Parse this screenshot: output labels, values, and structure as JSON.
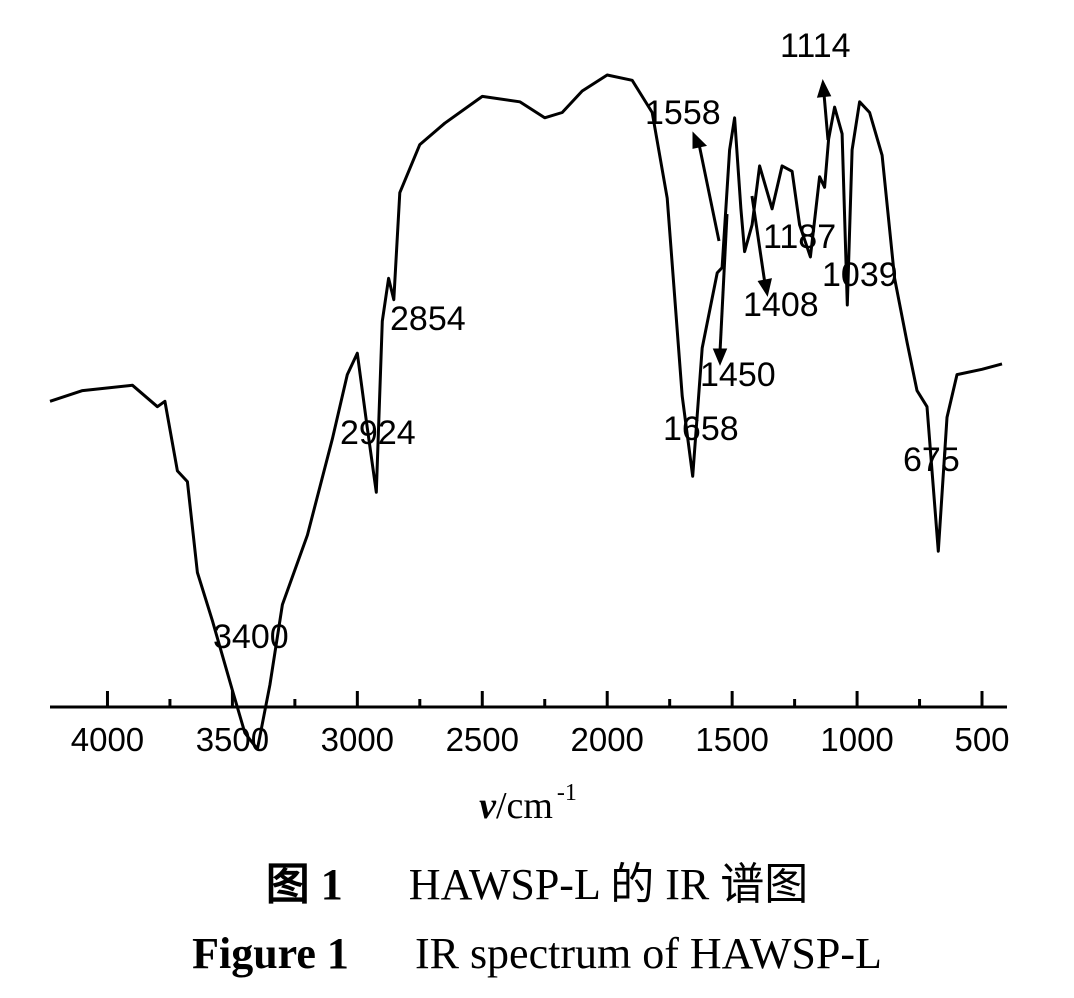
{
  "chart_data": {
    "type": "line",
    "xlabel": {
      "symbol": "ν",
      "unit": "/cm",
      "superscript": "-1"
    },
    "xlim": [
      4230,
      400
    ],
    "x_reversed": true,
    "xticks": [
      4000,
      3500,
      3000,
      2500,
      2000,
      1500,
      1000,
      500
    ],
    "tick_labels": [
      "4000",
      "3500",
      "3000",
      "2500",
      "2000",
      "1500",
      "1000",
      "500"
    ],
    "y_axis_shown": false,
    "grid": false,
    "series": [
      {
        "points": [
          [
            4230,
            0.61
          ],
          [
            4100,
            0.59
          ],
          [
            3900,
            0.58
          ],
          [
            3800,
            0.62
          ],
          [
            3770,
            0.61
          ],
          [
            3720,
            0.74
          ],
          [
            3680,
            0.76
          ],
          [
            3640,
            0.93
          ],
          [
            3580,
            1.02
          ],
          [
            3500,
            1.15
          ],
          [
            3450,
            1.23
          ],
          [
            3400,
            1.26
          ],
          [
            3350,
            1.14
          ],
          [
            3300,
            0.99
          ],
          [
            3200,
            0.86
          ],
          [
            3100,
            0.68
          ],
          [
            3040,
            0.56
          ],
          [
            3000,
            0.52
          ],
          [
            2960,
            0.66
          ],
          [
            2924,
            0.78
          ],
          [
            2900,
            0.46
          ],
          [
            2875,
            0.38
          ],
          [
            2854,
            0.42
          ],
          [
            2830,
            0.22
          ],
          [
            2750,
            0.13
          ],
          [
            2650,
            0.09
          ],
          [
            2500,
            0.04
          ],
          [
            2350,
            0.05
          ],
          [
            2250,
            0.08
          ],
          [
            2180,
            0.07
          ],
          [
            2100,
            0.03
          ],
          [
            2000,
            0.0
          ],
          [
            1900,
            0.01
          ],
          [
            1820,
            0.07
          ],
          [
            1760,
            0.23
          ],
          [
            1700,
            0.6
          ],
          [
            1658,
            0.75
          ],
          [
            1620,
            0.51
          ],
          [
            1560,
            0.37
          ],
          [
            1540,
            0.36
          ],
          [
            1510,
            0.14
          ],
          [
            1490,
            0.08
          ],
          [
            1465,
            0.25
          ],
          [
            1450,
            0.33
          ],
          [
            1420,
            0.28
          ],
          [
            1390,
            0.17
          ],
          [
            1340,
            0.25
          ],
          [
            1300,
            0.17
          ],
          [
            1260,
            0.18
          ],
          [
            1230,
            0.28
          ],
          [
            1187,
            0.34
          ],
          [
            1150,
            0.19
          ],
          [
            1130,
            0.21
          ],
          [
            1114,
            0.12
          ],
          [
            1090,
            0.06
          ],
          [
            1060,
            0.11
          ],
          [
            1039,
            0.43
          ],
          [
            1020,
            0.14
          ],
          [
            990,
            0.05
          ],
          [
            950,
            0.07
          ],
          [
            900,
            0.15
          ],
          [
            850,
            0.38
          ],
          [
            800,
            0.5
          ],
          [
            760,
            0.59
          ],
          [
            720,
            0.62
          ],
          [
            675,
            0.89
          ],
          [
            640,
            0.64
          ],
          [
            600,
            0.56
          ],
          [
            500,
            0.55
          ],
          [
            420,
            0.54
          ]
        ]
      }
    ],
    "peak_labels": [
      "3400",
      "2924",
      "2854",
      "1658",
      "1558",
      "1450",
      "1408",
      "1187",
      "1114",
      "1039",
      "675"
    ]
  },
  "caption": {
    "cn_label": "图 1",
    "cn_text": "HAWSP-L 的 IR 谱图",
    "en_label": "Figure 1",
    "en_text": "IR spectrum of HAWSP-L"
  }
}
